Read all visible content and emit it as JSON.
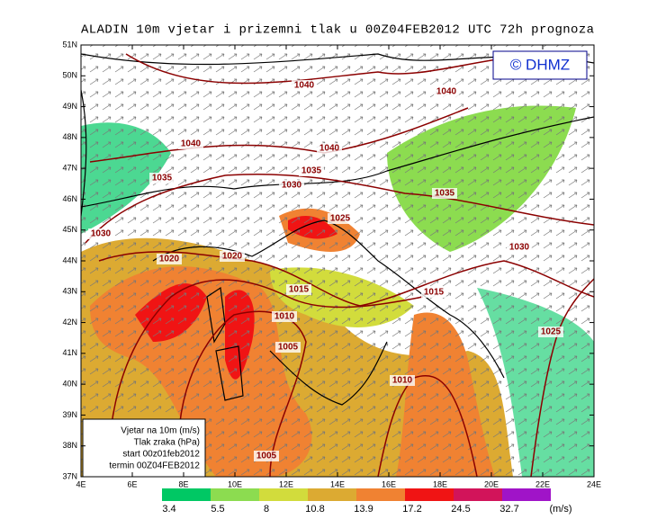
{
  "header": {
    "title": "ALADIN 10m vjetar i prizemni tlak u 00Z04FEB2012 UTC 72h prognoza"
  },
  "logo": "© DHMZ",
  "lat_labels": [
    "51N",
    "50N",
    "49N",
    "48N",
    "47N",
    "46N",
    "45N",
    "44N",
    "43N",
    "42N",
    "41N",
    "40N",
    "39N",
    "38N",
    "37N"
  ],
  "lon_labels": [
    "4E",
    "6E",
    "8E",
    "10E",
    "12E",
    "14E",
    "16E",
    "18E",
    "20E",
    "22E",
    "24E"
  ],
  "isobars": [
    1040,
    1040,
    1040,
    1040,
    1035,
    1035,
    1030,
    1035,
    1025,
    1030,
    1030,
    1020,
    1020,
    1015,
    1015,
    1010,
    1025,
    1005,
    1010,
    1005
  ],
  "info_box": [
    "Vjetar na 10m (m/s)",
    "Tlak zraka (hPa)",
    "start 00z01feb2012",
    "termin 00Z04FEB2012"
  ],
  "colorbar": {
    "labels": [
      "3.4",
      "5.5",
      "8",
      "10.8",
      "13.9",
      "17.2",
      "24.5",
      "32.7"
    ],
    "colors": [
      "#00c864",
      "#8cdc50",
      "#d2dc3c",
      "#dcaa32",
      "#f08232",
      "#f01414",
      "#d2145a",
      "#a014c8"
    ],
    "unit": "(m/s)"
  }
}
